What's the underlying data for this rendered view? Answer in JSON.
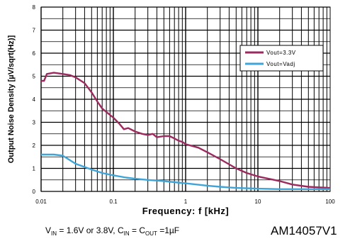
{
  "chart_data": {
    "type": "line",
    "xlabel": "Frequency: f [kHz]",
    "ylabel": "Output Noise Density [µV/sqrt(Hz)]",
    "xscale": "log",
    "xlim": [
      0.01,
      100
    ],
    "ylim": [
      0,
      8
    ],
    "xticks": [
      "0.01",
      "0.1",
      "1",
      "10",
      "100"
    ],
    "yticks": [
      "0",
      "1",
      "2",
      "3",
      "4",
      "5",
      "6",
      "7",
      "8"
    ],
    "grid": true,
    "legend": "upper right",
    "series": [
      {
        "name": "Vout=3.3V",
        "color": "#9b2a5f",
        "x": [
          0.01,
          0.011,
          0.012,
          0.015,
          0.02,
          0.025,
          0.03,
          0.04,
          0.05,
          0.06,
          0.07,
          0.08,
          0.1,
          0.12,
          0.14,
          0.16,
          0.2,
          0.25,
          0.3,
          0.35,
          0.4,
          0.5,
          0.6,
          0.7,
          0.8,
          0.9,
          1.0,
          1.5,
          2,
          3,
          5,
          7,
          10,
          20,
          30,
          50,
          100
        ],
        "y": [
          4.8,
          4.8,
          5.1,
          5.15,
          5.1,
          5.05,
          4.95,
          4.7,
          4.3,
          3.9,
          3.6,
          3.45,
          3.2,
          2.95,
          2.7,
          2.75,
          2.6,
          2.5,
          2.45,
          2.5,
          2.35,
          2.4,
          2.4,
          2.3,
          2.2,
          2.15,
          2.05,
          1.9,
          1.7,
          1.4,
          1.0,
          0.8,
          0.65,
          0.45,
          0.3,
          0.2,
          0.15
        ]
      },
      {
        "name": "Vout=Vadj",
        "color": "#3fa5d8",
        "x": [
          0.01,
          0.015,
          0.02,
          0.03,
          0.05,
          0.07,
          0.1,
          0.15,
          0.2,
          0.3,
          0.5,
          0.7,
          1,
          2,
          3,
          5,
          10,
          20,
          50,
          100
        ],
        "y": [
          1.6,
          1.6,
          1.55,
          1.2,
          0.95,
          0.8,
          0.7,
          0.6,
          0.55,
          0.5,
          0.45,
          0.4,
          0.35,
          0.25,
          0.2,
          0.15,
          0.12,
          0.1,
          0.1,
          0.1
        ]
      }
    ]
  },
  "caption": {
    "v": "V",
    "v_sub": "IN",
    "part1": " = 1.6V or 3.8V, C",
    "c_in_sub": "IN",
    "eq": " = C",
    "c_out_sub": "OUT",
    "part2": " =1µF"
  },
  "figure_code": "AM14057V1"
}
